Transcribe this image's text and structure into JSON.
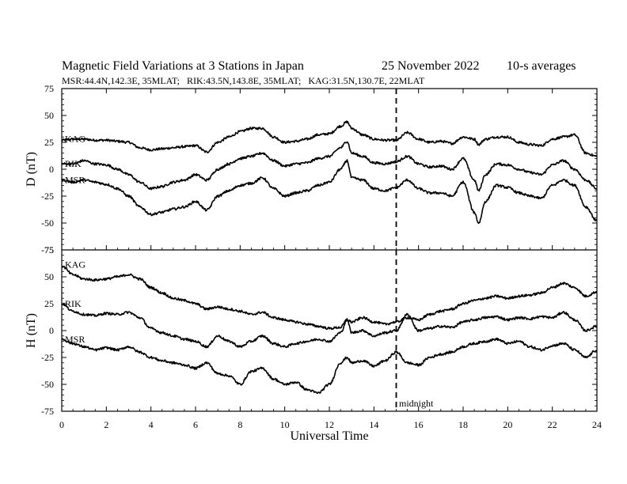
{
  "header": {
    "title": "Magnetic Field Variations at 3 Stations in Japan",
    "date": "25 November 2022",
    "averages": "10-s averages",
    "stations_info": "MSR:44.4N,142.3E, 35MLAT;   RIK:43.5N,143.8E, 35MLAT;   KAG:31.5N,130.7E, 22MLAT"
  },
  "chart_data": {
    "type": "line",
    "xlabel": "Universal Time",
    "xlim": [
      0,
      24
    ],
    "xticks": [
      0,
      2,
      4,
      6,
      8,
      10,
      12,
      14,
      16,
      18,
      20,
      22,
      24
    ],
    "annotation": {
      "x": 15,
      "label": "midnight"
    },
    "panels": [
      {
        "ylabel": "D (nT)",
        "ylim": [
          -75,
          75
        ],
        "yticks": [
          75,
          50,
          25,
          0,
          -25,
          -50,
          -75
        ],
        "series": [
          {
            "name": "KAG",
            "x": [
              0,
              0.5,
              1,
              1.5,
              2,
              2.5,
              3,
              3.5,
              4,
              4.5,
              5,
              5.5,
              6,
              6.5,
              7,
              7.5,
              8,
              8.5,
              9,
              9.5,
              10,
              10.5,
              11,
              11.5,
              12,
              12.5,
              12.8,
              13,
              13.5,
              14,
              14.5,
              15,
              15.5,
              16,
              16.5,
              17,
              17.5,
              18,
              18.5,
              18.7,
              19,
              19.5,
              20,
              20.5,
              21,
              21.5,
              22,
              22.5,
              23,
              23.5,
              24
            ],
            "y": [
              27,
              28,
              28,
              27,
              27,
              26,
              25,
              20,
              18,
              19,
              20,
              21,
              22,
              16,
              25,
              30,
              35,
              38,
              38,
              30,
              25,
              26,
              28,
              32,
              33,
              40,
              44,
              38,
              32,
              28,
              27,
              27,
              34,
              28,
              25,
              26,
              24,
              30,
              28,
              23,
              28,
              30,
              30,
              25,
              23,
              22,
              28,
              30,
              32,
              15,
              12
            ]
          },
          {
            "name": "RIK",
            "x": [
              0,
              0.5,
              1,
              1.5,
              2,
              2.5,
              3,
              3.5,
              4,
              4.5,
              5,
              5.5,
              6,
              6.5,
              7,
              7.5,
              8,
              8.5,
              9,
              9.5,
              10,
              10.5,
              11,
              11.5,
              12,
              12.5,
              12.8,
              13,
              13.5,
              14,
              14.5,
              15,
              15.5,
              16,
              16.5,
              17,
              17.5,
              18,
              18.5,
              18.7,
              19,
              19.5,
              20,
              20.5,
              21,
              21.5,
              22,
              22.5,
              23,
              23.5,
              24
            ],
            "y": [
              5,
              5,
              8,
              5,
              4,
              0,
              -5,
              -12,
              -18,
              -16,
              -12,
              -10,
              -5,
              -10,
              0,
              5,
              10,
              12,
              15,
              8,
              3,
              5,
              6,
              10,
              12,
              20,
              26,
              15,
              12,
              6,
              5,
              7,
              12,
              5,
              2,
              3,
              0,
              10,
              -10,
              -20,
              -5,
              5,
              4,
              0,
              -3,
              -5,
              4,
              8,
              0,
              -10,
              -18
            ]
          },
          {
            "name": "MSR",
            "x": [
              0,
              0.5,
              1,
              1.5,
              2,
              2.5,
              3,
              3.5,
              4,
              4.5,
              5,
              5.5,
              6,
              6.5,
              7,
              7.5,
              8,
              8.5,
              9,
              9.5,
              10,
              10.5,
              11,
              11.5,
              12,
              12.5,
              12.8,
              13,
              13.5,
              14,
              14.5,
              15,
              15.5,
              16,
              16.5,
              17,
              17.5,
              18,
              18.5,
              18.7,
              19,
              19.5,
              20,
              20.5,
              21,
              21.5,
              22,
              22.5,
              23,
              23.5,
              24
            ],
            "y": [
              -10,
              -12,
              -10,
              -12,
              -14,
              -18,
              -25,
              -35,
              -42,
              -40,
              -37,
              -35,
              -30,
              -38,
              -25,
              -20,
              -15,
              -13,
              -8,
              -18,
              -25,
              -22,
              -20,
              -15,
              -12,
              0,
              8,
              -8,
              -10,
              -18,
              -20,
              -17,
              -10,
              -18,
              -22,
              -22,
              -25,
              -12,
              -40,
              -50,
              -30,
              -15,
              -17,
              -22,
              -25,
              -27,
              -15,
              -10,
              -15,
              -35,
              -48
            ]
          }
        ]
      },
      {
        "ylabel": "H (nT)",
        "ylim": [
          -75,
          75
        ],
        "yticks": [
          75,
          50,
          25,
          0,
          -25,
          -50,
          -75
        ],
        "series": [
          {
            "name": "KAG",
            "x": [
              0,
              0.5,
              1,
              1.5,
              2,
              2.5,
              3,
              3.5,
              4,
              4.5,
              5,
              5.5,
              6,
              6.5,
              7,
              7.5,
              8,
              8.5,
              9,
              9.5,
              10,
              10.5,
              11,
              11.5,
              12,
              12.5,
              12.8,
              13,
              13.5,
              14,
              14.5,
              15,
              15.5,
              16,
              16.5,
              17,
              17.5,
              18,
              18.5,
              19,
              19.5,
              20,
              20.5,
              21,
              21.5,
              22,
              22.5,
              23,
              23.5,
              24
            ],
            "y": [
              60,
              52,
              48,
              47,
              48,
              50,
              52,
              48,
              40,
              35,
              30,
              28,
              25,
              20,
              22,
              20,
              18,
              15,
              17,
              12,
              10,
              8,
              6,
              4,
              2,
              3,
              10,
              8,
              12,
              8,
              6,
              8,
              12,
              10,
              15,
              18,
              20,
              25,
              28,
              30,
              32,
              30,
              32,
              33,
              35,
              40,
              44,
              40,
              32,
              36
            ]
          },
          {
            "name": "RIK",
            "x": [
              0,
              0.5,
              1,
              1.5,
              2,
              2.5,
              3,
              3.5,
              4,
              4.5,
              5,
              5.5,
              6,
              6.5,
              7,
              7.5,
              8,
              8.5,
              9,
              9.5,
              10,
              10.5,
              11,
              11.5,
              12,
              12.5,
              12.8,
              13,
              13.5,
              14,
              14.5,
              15,
              15.5,
              16,
              16.5,
              17,
              17.5,
              18,
              18.5,
              19,
              19.5,
              20,
              20.5,
              21,
              21.5,
              22,
              22.5,
              23,
              23.5,
              24
            ],
            "y": [
              25,
              18,
              15,
              14,
              16,
              15,
              17,
              12,
              2,
              -2,
              -5,
              -8,
              -10,
              -15,
              -5,
              -10,
              -15,
              -10,
              -5,
              -12,
              -15,
              -12,
              -10,
              -8,
              -10,
              -2,
              10,
              -2,
              0,
              -5,
              -2,
              0,
              15,
              0,
              2,
              4,
              3,
              8,
              10,
              12,
              13,
              10,
              12,
              11,
              13,
              12,
              17,
              10,
              0,
              4
            ]
          },
          {
            "name": "MSR",
            "x": [
              0,
              0.5,
              1,
              1.5,
              2,
              2.5,
              3,
              3.5,
              4,
              4.5,
              5,
              5.5,
              6,
              6.5,
              7,
              7.5,
              8,
              8.5,
              9,
              9.5,
              10,
              10.5,
              11,
              11.5,
              12,
              12.5,
              12.8,
              13,
              13.5,
              14,
              14.5,
              15,
              15.5,
              16,
              16.5,
              17,
              17.5,
              18,
              18.5,
              19,
              19.5,
              20,
              20.5,
              21,
              21.5,
              22,
              22.5,
              23,
              23.5,
              24
            ],
            "y": [
              -8,
              -12,
              -15,
              -18,
              -16,
              -18,
              -15,
              -20,
              -25,
              -28,
              -30,
              -32,
              -35,
              -30,
              -40,
              -42,
              -50,
              -38,
              -35,
              -45,
              -50,
              -48,
              -55,
              -58,
              -50,
              -30,
              -25,
              -30,
              -28,
              -33,
              -28,
              -20,
              -30,
              -32,
              -25,
              -22,
              -20,
              -15,
              -12,
              -10,
              -8,
              -12,
              -10,
              -15,
              -18,
              -14,
              -12,
              -18,
              -25,
              -18
            ]
          }
        ]
      }
    ]
  }
}
